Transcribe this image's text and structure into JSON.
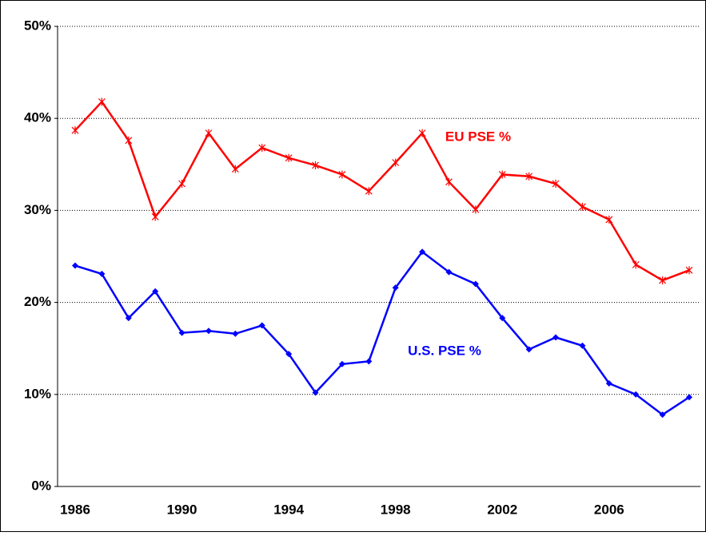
{
  "chart_data": {
    "type": "line",
    "categories": [
      "1986",
      null,
      null,
      null,
      "1990",
      null,
      null,
      null,
      "1994",
      null,
      null,
      null,
      "1998",
      null,
      null,
      null,
      "2002",
      null,
      null,
      null,
      "2006",
      null,
      null,
      null
    ],
    "series": [
      {
        "name": "EU PSE %",
        "color": "#ff0000",
        "marker": "star",
        "values": [
          38.7,
          41.8,
          37.6,
          29.3,
          32.9,
          38.4,
          34.5,
          36.8,
          35.7,
          34.9,
          33.9,
          32.1,
          35.2,
          38.4,
          33.1,
          30.1,
          33.9,
          33.7,
          32.9,
          30.4,
          29.0,
          24.1,
          22.4,
          23.5
        ]
      },
      {
        "name": "U.S. PSE %",
        "color": "#0000ff",
        "marker": "diamond",
        "values": [
          24.0,
          23.1,
          18.3,
          21.2,
          16.7,
          16.9,
          16.6,
          17.5,
          14.4,
          10.2,
          13.3,
          13.6,
          21.6,
          25.5,
          23.3,
          22.0,
          18.3,
          14.9,
          16.2,
          15.3,
          11.2,
          10.0,
          7.8,
          9.7
        ]
      }
    ],
    "ylim": [
      0,
      50
    ],
    "yticks": [
      {
        "value": 0,
        "label": "0%"
      },
      {
        "value": 10,
        "label": "10%"
      },
      {
        "value": 20,
        "label": "20%"
      },
      {
        "value": 30,
        "label": "30%"
      },
      {
        "value": 40,
        "label": "40%"
      },
      {
        "value": 50,
        "label": "50%"
      }
    ],
    "grid": true
  }
}
